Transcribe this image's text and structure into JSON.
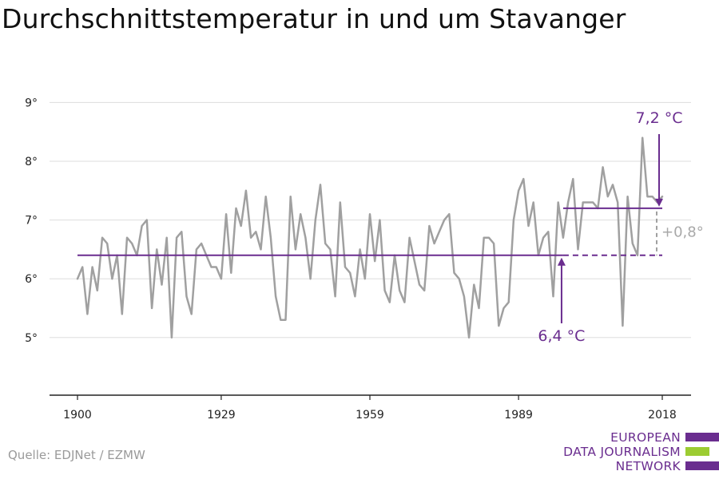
{
  "title": "Durchschnittstemperatur in und um Stavanger",
  "source": "Quelle: EDJNet / EZMW",
  "logo": {
    "line1": "EUROPEAN",
    "line2": "DATA JOURNALISM",
    "line3": "NETWORK"
  },
  "colors": {
    "series": "#a0a0a0",
    "accent": "#6a2d8f",
    "grid": "#dddddd",
    "logo_green": "#9ccc32"
  },
  "chart_data": {
    "type": "line",
    "title": "Durchschnittstemperatur in und um Stavanger",
    "xlabel": "",
    "ylabel": "",
    "xlim": [
      1900,
      2018
    ],
    "ylim": [
      4.25,
      9.25
    ],
    "x_ticks": [
      1900,
      1929,
      1959,
      1989,
      2018
    ],
    "y_ticks": [
      5,
      6,
      7,
      8,
      9
    ],
    "y_tick_labels": [
      "5°",
      "6°",
      "7°",
      "8°",
      "9°"
    ],
    "grid": true,
    "series": [
      {
        "x": [
          1900,
          1901,
          1902,
          1903,
          1904,
          1905,
          1906,
          1907,
          1908,
          1909,
          1910,
          1911,
          1912,
          1913,
          1914,
          1915,
          1916,
          1917,
          1918,
          1919,
          1920,
          1921,
          1922,
          1923,
          1924,
          1925,
          1926,
          1927,
          1928,
          1929,
          1930,
          1931,
          1932,
          1933,
          1934,
          1935,
          1936,
          1937,
          1938,
          1939,
          1940,
          1941,
          1942,
          1943,
          1944,
          1945,
          1946,
          1947,
          1948,
          1949,
          1950,
          1951,
          1952,
          1953,
          1954,
          1955,
          1956,
          1957,
          1958,
          1959,
          1960,
          1961,
          1962,
          1963,
          1964,
          1965,
          1966,
          1967,
          1968,
          1969,
          1970,
          1971,
          1972,
          1973,
          1974,
          1975,
          1976,
          1977,
          1978,
          1979,
          1980,
          1981,
          1982,
          1983,
          1984,
          1985,
          1986,
          1987,
          1988,
          1989,
          1990,
          1991,
          1992,
          1993,
          1994,
          1995,
          1996,
          1997,
          1998,
          1999,
          2000,
          2001,
          2002,
          2003,
          2004,
          2005,
          2006,
          2007,
          2008,
          2009,
          2010,
          2011,
          2012,
          2013,
          2014,
          2015,
          2016,
          2017,
          2018
        ],
        "values": [
          6.0,
          6.2,
          5.4,
          6.2,
          5.8,
          6.7,
          6.6,
          6.0,
          6.4,
          5.4,
          6.7,
          6.6,
          6.4,
          6.9,
          7.0,
          5.5,
          6.5,
          5.9,
          6.7,
          5.0,
          6.7,
          6.8,
          5.7,
          5.4,
          6.5,
          6.6,
          6.4,
          6.2,
          6.2,
          6.0,
          7.1,
          6.1,
          7.2,
          6.9,
          7.5,
          6.7,
          6.8,
          6.5,
          7.4,
          6.7,
          5.7,
          5.3,
          5.3,
          7.4,
          6.5,
          7.1,
          6.7,
          6.0,
          7.0,
          7.6,
          6.6,
          6.5,
          5.7,
          7.3,
          6.2,
          6.1,
          5.7,
          6.5,
          6.0,
          7.1,
          6.3,
          7.0,
          5.8,
          5.6,
          6.4,
          5.8,
          5.6,
          6.7,
          6.3,
          5.9,
          5.8,
          6.9,
          6.6,
          6.8,
          7.0,
          7.1,
          6.1,
          6.0,
          5.7,
          5.0,
          5.9,
          5.5,
          6.7,
          6.7,
          6.6,
          5.2,
          5.5,
          5.6,
          7.0,
          7.5,
          7.7,
          6.9,
          7.3,
          6.4,
          6.7,
          6.8,
          5.7,
          7.3,
          6.7,
          7.3,
          7.7,
          6.5,
          7.3,
          7.3,
          7.3,
          7.2,
          7.9,
          7.4,
          7.6,
          7.3,
          5.2,
          7.4,
          6.6,
          6.4,
          8.4,
          7.4,
          7.4,
          7.3,
          7.4
        ]
      }
    ],
    "reference_lines": [
      {
        "label": "6,4 °C",
        "value": 6.4,
        "from": 1900,
        "to": 1998,
        "dashed_to": 2018
      },
      {
        "label": "7,2 °C",
        "value": 7.2,
        "from": 1998,
        "to": 2018
      }
    ],
    "difference_label": "+0,8°"
  }
}
